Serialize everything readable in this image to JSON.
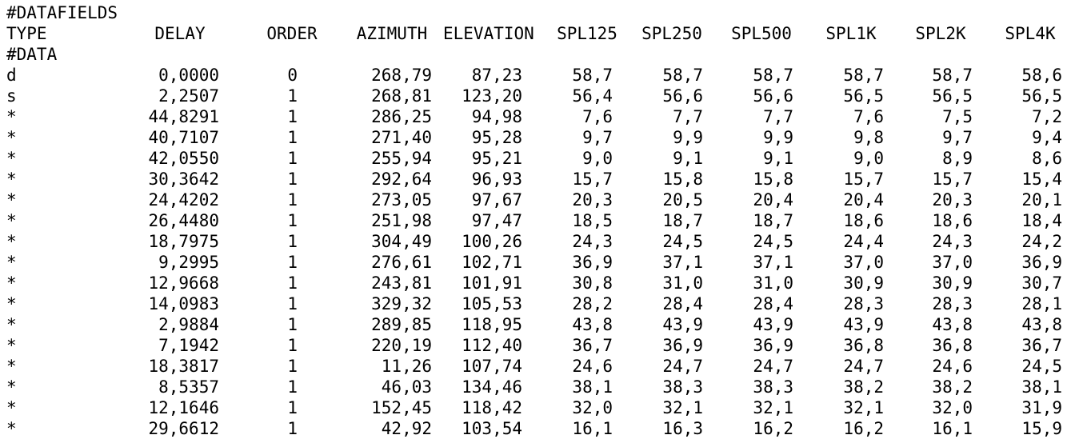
{
  "header_lines": {
    "datafields": "#DATAFIELDS",
    "data": "#DATA"
  },
  "columns": [
    "TYPE",
    "DELAY",
    "ORDER",
    "AZIMUTH",
    "ELEVATION",
    "SPL125",
    "SPL250",
    "SPL500",
    "SPL1K",
    "SPL2K",
    "SPL4K"
  ],
  "rows": [
    [
      "d",
      "0,0000",
      "0",
      "268,79",
      "87,23",
      "58,7",
      "58,7",
      "58,7",
      "58,7",
      "58,7",
      "58,6"
    ],
    [
      "s",
      "2,2507",
      "1",
      "268,81",
      "123,20",
      "56,4",
      "56,6",
      "56,6",
      "56,5",
      "56,5",
      "56,5"
    ],
    [
      "*",
      "44,8291",
      "1",
      "286,25",
      "94,98",
      "7,6",
      "7,7",
      "7,7",
      "7,6",
      "7,5",
      "7,2"
    ],
    [
      "*",
      "40,7107",
      "1",
      "271,40",
      "95,28",
      "9,7",
      "9,9",
      "9,9",
      "9,8",
      "9,7",
      "9,4"
    ],
    [
      "*",
      "42,0550",
      "1",
      "255,94",
      "95,21",
      "9,0",
      "9,1",
      "9,1",
      "9,0",
      "8,9",
      "8,6"
    ],
    [
      "*",
      "30,3642",
      "1",
      "292,64",
      "96,93",
      "15,7",
      "15,8",
      "15,8",
      "15,7",
      "15,7",
      "15,4"
    ],
    [
      "*",
      "24,4202",
      "1",
      "273,05",
      "97,67",
      "20,3",
      "20,5",
      "20,4",
      "20,4",
      "20,3",
      "20,1"
    ],
    [
      "*",
      "26,4480",
      "1",
      "251,98",
      "97,47",
      "18,5",
      "18,7",
      "18,7",
      "18,6",
      "18,6",
      "18,4"
    ],
    [
      "*",
      "18,7975",
      "1",
      "304,49",
      "100,26",
      "24,3",
      "24,5",
      "24,5",
      "24,4",
      "24,3",
      "24,2"
    ],
    [
      "*",
      "9,2995",
      "1",
      "276,61",
      "102,71",
      "36,9",
      "37,1",
      "37,1",
      "37,0",
      "37,0",
      "36,9"
    ],
    [
      "*",
      "12,9668",
      "1",
      "243,81",
      "101,91",
      "30,8",
      "31,0",
      "31,0",
      "30,9",
      "30,9",
      "30,7"
    ],
    [
      "*",
      "14,0983",
      "1",
      "329,32",
      "105,53",
      "28,2",
      "28,4",
      "28,4",
      "28,3",
      "28,3",
      "28,1"
    ],
    [
      "*",
      "2,9884",
      "1",
      "289,85",
      "118,95",
      "43,8",
      "43,9",
      "43,9",
      "43,9",
      "43,8",
      "43,8"
    ],
    [
      "*",
      "7,1942",
      "1",
      "220,19",
      "112,40",
      "36,7",
      "36,9",
      "36,9",
      "36,8",
      "36,8",
      "36,7"
    ],
    [
      "*",
      "18,3817",
      "1",
      "11,26",
      "107,74",
      "24,6",
      "24,7",
      "24,7",
      "24,7",
      "24,6",
      "24,5"
    ],
    [
      "*",
      "8,5357",
      "1",
      "46,03",
      "134,46",
      "38,1",
      "38,3",
      "38,3",
      "38,2",
      "38,2",
      "38,1"
    ],
    [
      "*",
      "12,1646",
      "1",
      "152,45",
      "118,42",
      "32,0",
      "32,1",
      "32,1",
      "32,1",
      "32,0",
      "31,9"
    ],
    [
      "*",
      "29,6612",
      "1",
      "42,92",
      "103,54",
      "16,1",
      "16,3",
      "16,2",
      "16,2",
      "16,1",
      "15,9"
    ]
  ]
}
